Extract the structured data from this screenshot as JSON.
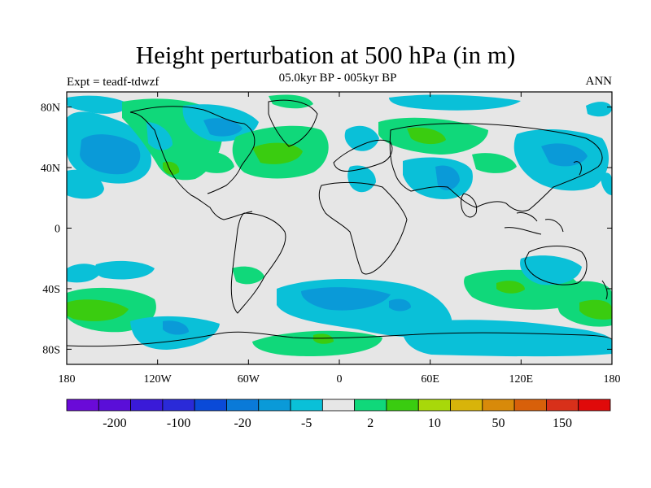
{
  "title": "Height perturbation at 500 hPa (in m)",
  "subtitle": "05.0kyr BP - 005kyr BP",
  "experiment": "Expt = teadf-tdwzf",
  "season": "ANN",
  "map": {
    "projection": "cylindrical equidistant",
    "lon_range": [
      -180,
      180
    ],
    "lat_range": [
      -90,
      90
    ],
    "lat_ticks": [
      {
        "value": 80,
        "label": "80N"
      },
      {
        "value": 40,
        "label": "40N"
      },
      {
        "value": 0,
        "label": "0"
      },
      {
        "value": -40,
        "label": "40S"
      },
      {
        "value": -80,
        "label": "80S"
      }
    ],
    "lon_ticks": [
      {
        "value": -180,
        "label": "180"
      },
      {
        "value": -120,
        "label": "120W"
      },
      {
        "value": -60,
        "label": "60W"
      },
      {
        "value": 0,
        "label": "0"
      },
      {
        "value": 60,
        "label": "60E"
      },
      {
        "value": 120,
        "label": "120E"
      },
      {
        "value": 180,
        "label": "180"
      }
    ]
  },
  "colorbar": {
    "colors": [
      "#6a0ad8",
      "#5a0ed8",
      "#3a1ad8",
      "#2a2ad8",
      "#0a4ad8",
      "#0a7ad8",
      "#0a9ad8",
      "#0ac0d8",
      "#e6e6e6",
      "#10d87a",
      "#3acc10",
      "#a8d80a",
      "#d8b40a",
      "#d88a0a",
      "#d8600a",
      "#d8301a",
      "#e00a0a"
    ],
    "labels": [
      {
        "boundary": 1,
        "text": "-200"
      },
      {
        "boundary": 3,
        "text": "-100"
      },
      {
        "boundary": 5,
        "text": "-20"
      },
      {
        "boundary": 7,
        "text": "-5"
      },
      {
        "boundary": 9,
        "text": "2"
      },
      {
        "boundary": 11,
        "text": "10"
      },
      {
        "boundary": 13,
        "text": "50"
      },
      {
        "boundary": 15,
        "text": "150"
      }
    ]
  },
  "anomaly_regions": [
    {
      "name": "n-pacific-low",
      "level": "-5",
      "color": "#0ac0d8",
      "lon": -150,
      "lat": 50
    },
    {
      "name": "n-pacific-core",
      "level": "-20",
      "color": "#0a9ad8",
      "lon": -145,
      "lat": 46
    },
    {
      "name": "n-america-high",
      "level": "2",
      "color": "#10d87a",
      "lon": -95,
      "lat": 55
    },
    {
      "name": "atlantic-high",
      "level": "10",
      "color": "#3acc10",
      "lon": -30,
      "lat": 48
    },
    {
      "name": "central-asia-low",
      "level": "-20",
      "color": "#0a9ad8",
      "lon": 65,
      "lat": 30
    },
    {
      "name": "siberia-high",
      "level": "10",
      "color": "#3acc10",
      "lon": 60,
      "lat": 62
    },
    {
      "name": "s-pacific-high",
      "level": "10",
      "color": "#3acc10",
      "lon": -160,
      "lat": -55
    },
    {
      "name": "s-atlantic-low",
      "level": "-20",
      "color": "#0a9ad8",
      "lon": -10,
      "lat": -45
    },
    {
      "name": "indian-ocean-high",
      "level": "10",
      "color": "#3acc10",
      "lon": 110,
      "lat": -40
    },
    {
      "name": "antarctic-high",
      "level": "2",
      "color": "#10d87a",
      "lon": -10,
      "lat": -72
    }
  ]
}
